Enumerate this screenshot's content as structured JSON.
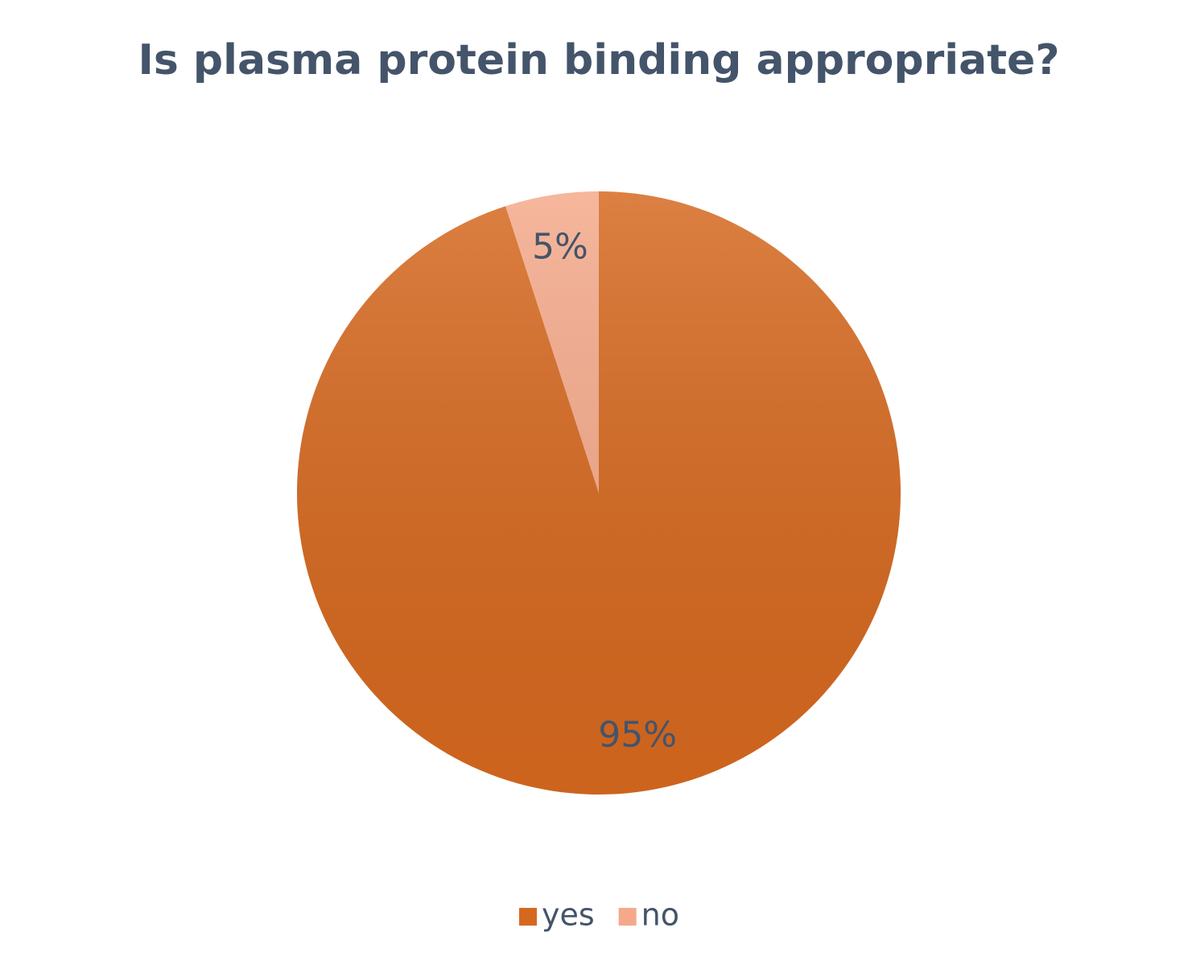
{
  "chart_data": {
    "type": "pie",
    "title": "Is plasma protein binding appropriate?",
    "categories": [
      "yes",
      "no"
    ],
    "values": [
      95,
      5
    ],
    "value_labels": [
      "95%",
      "5%"
    ],
    "colors": [
      "#D5681F",
      "#F4A98A"
    ],
    "legend": "bottom"
  }
}
